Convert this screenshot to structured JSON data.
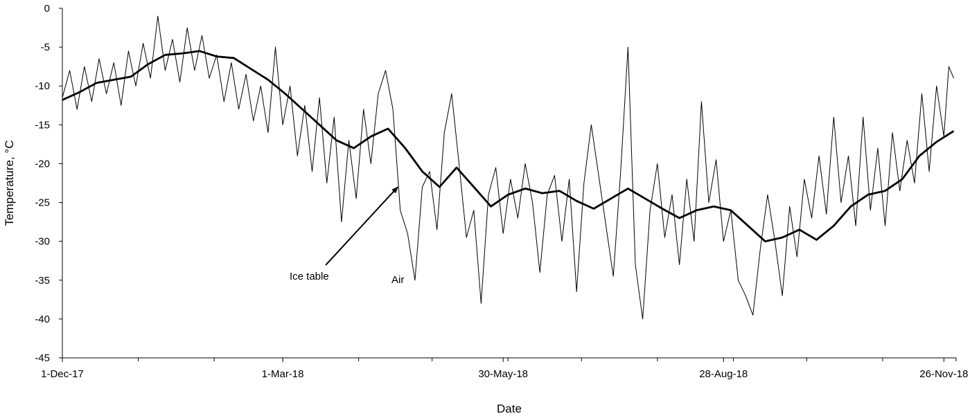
{
  "chart_data": {
    "type": "line",
    "title": "",
    "xlabel": "Date",
    "ylabel": "Temperature, °C",
    "x_domain": [
      "2017-12-01",
      "2018-12-01"
    ],
    "ylim": [
      -45,
      0
    ],
    "y_ticks": [
      0,
      -5,
      -10,
      -15,
      -20,
      -25,
      -30,
      -35,
      -40,
      -45
    ],
    "x_tick_labels": [
      {
        "date": "2017-12-01",
        "label": "1-Dec-17"
      },
      {
        "date": "2018-03-01",
        "label": "1-Mar-18"
      },
      {
        "date": "2018-05-30",
        "label": "30-May-18"
      },
      {
        "date": "2018-08-28",
        "label": "28-Aug-18"
      },
      {
        "date": "2018-11-26",
        "label": "26-Nov-18"
      }
    ],
    "grid": false,
    "legend": "none",
    "annotations": [
      {
        "text": "Ice table",
        "series": "Ice table",
        "arrow_to": {
          "date": "2018-04-17",
          "y": -23
        }
      },
      {
        "text": "Air",
        "series": "Air"
      }
    ],
    "series": [
      {
        "name": "Ice table",
        "style": "thick",
        "points": [
          [
            "2017-12-01",
            -11.8
          ],
          [
            "2017-12-08",
            -10.8
          ],
          [
            "2017-12-15",
            -9.6
          ],
          [
            "2017-12-22",
            -9.2
          ],
          [
            "2017-12-29",
            -8.8
          ],
          [
            "2018-01-05",
            -7.2
          ],
          [
            "2018-01-12",
            -6.0
          ],
          [
            "2018-01-19",
            -5.8
          ],
          [
            "2018-01-26",
            -5.5
          ],
          [
            "2018-02-02",
            -6.2
          ],
          [
            "2018-02-09",
            -6.4
          ],
          [
            "2018-02-16",
            -7.8
          ],
          [
            "2018-02-23",
            -9.2
          ],
          [
            "2018-03-02",
            -11.0
          ],
          [
            "2018-03-09",
            -13.0
          ],
          [
            "2018-03-16",
            -15.0
          ],
          [
            "2018-03-23",
            -17.0
          ],
          [
            "2018-03-30",
            -18.0
          ],
          [
            "2018-04-06",
            -16.5
          ],
          [
            "2018-04-13",
            -15.5
          ],
          [
            "2018-04-20",
            -18.0
          ],
          [
            "2018-04-27",
            -21.0
          ],
          [
            "2018-05-04",
            -23.0
          ],
          [
            "2018-05-11",
            -20.5
          ],
          [
            "2018-05-18",
            -23.0
          ],
          [
            "2018-05-25",
            -25.5
          ],
          [
            "2018-06-01",
            -24.0
          ],
          [
            "2018-06-08",
            -23.2
          ],
          [
            "2018-06-15",
            -23.8
          ],
          [
            "2018-06-22",
            -23.5
          ],
          [
            "2018-06-29",
            -24.8
          ],
          [
            "2018-07-06",
            -25.8
          ],
          [
            "2018-07-13",
            -24.5
          ],
          [
            "2018-07-20",
            -23.2
          ],
          [
            "2018-07-27",
            -24.5
          ],
          [
            "2018-08-03",
            -25.8
          ],
          [
            "2018-08-10",
            -27.0
          ],
          [
            "2018-08-17",
            -26.0
          ],
          [
            "2018-08-24",
            -25.5
          ],
          [
            "2018-08-31",
            -26.0
          ],
          [
            "2018-09-07",
            -28.0
          ],
          [
            "2018-09-14",
            -30.0
          ],
          [
            "2018-09-21",
            -29.5
          ],
          [
            "2018-09-28",
            -28.5
          ],
          [
            "2018-10-05",
            -29.8
          ],
          [
            "2018-10-12",
            -28.0
          ],
          [
            "2018-10-19",
            -25.5
          ],
          [
            "2018-10-26",
            -24.0
          ],
          [
            "2018-11-02",
            -23.5
          ],
          [
            "2018-11-09",
            -22.0
          ],
          [
            "2018-11-16",
            -19.0
          ],
          [
            "2018-11-23",
            -17.2
          ],
          [
            "2018-11-30",
            -15.8
          ]
        ]
      },
      {
        "name": "Air",
        "style": "thin",
        "points": [
          [
            "2017-12-01",
            -11.5
          ],
          [
            "2017-12-04",
            -8.0
          ],
          [
            "2017-12-07",
            -13.0
          ],
          [
            "2017-12-10",
            -7.5
          ],
          [
            "2017-12-13",
            -12.0
          ],
          [
            "2017-12-16",
            -6.5
          ],
          [
            "2017-12-19",
            -11.0
          ],
          [
            "2017-12-22",
            -7.0
          ],
          [
            "2017-12-25",
            -12.5
          ],
          [
            "2017-12-28",
            -5.5
          ],
          [
            "2017-12-31",
            -10.0
          ],
          [
            "2018-01-03",
            -4.5
          ],
          [
            "2018-01-06",
            -9.0
          ],
          [
            "2018-01-09",
            -1.0
          ],
          [
            "2018-01-12",
            -8.0
          ],
          [
            "2018-01-15",
            -4.0
          ],
          [
            "2018-01-18",
            -9.5
          ],
          [
            "2018-01-21",
            -2.5
          ],
          [
            "2018-01-24",
            -8.0
          ],
          [
            "2018-01-27",
            -3.5
          ],
          [
            "2018-01-30",
            -9.0
          ],
          [
            "2018-02-02",
            -6.0
          ],
          [
            "2018-02-05",
            -12.0
          ],
          [
            "2018-02-08",
            -7.0
          ],
          [
            "2018-02-11",
            -13.0
          ],
          [
            "2018-02-14",
            -8.5
          ],
          [
            "2018-02-17",
            -14.5
          ],
          [
            "2018-02-20",
            -10.0
          ],
          [
            "2018-02-23",
            -16.0
          ],
          [
            "2018-02-26",
            -5.0
          ],
          [
            "2018-03-01",
            -15.0
          ],
          [
            "2018-03-04",
            -10.0
          ],
          [
            "2018-03-07",
            -19.0
          ],
          [
            "2018-03-10",
            -12.5
          ],
          [
            "2018-03-13",
            -21.0
          ],
          [
            "2018-03-16",
            -11.5
          ],
          [
            "2018-03-19",
            -22.5
          ],
          [
            "2018-03-22",
            -14.0
          ],
          [
            "2018-03-25",
            -27.5
          ],
          [
            "2018-03-28",
            -17.0
          ],
          [
            "2018-03-31",
            -24.5
          ],
          [
            "2018-04-03",
            -13.0
          ],
          [
            "2018-04-06",
            -20.0
          ],
          [
            "2018-04-09",
            -11.0
          ],
          [
            "2018-04-12",
            -8.0
          ],
          [
            "2018-04-15",
            -13.0
          ],
          [
            "2018-04-18",
            -26.0
          ],
          [
            "2018-04-21",
            -29.0
          ],
          [
            "2018-04-24",
            -35.0
          ],
          [
            "2018-04-27",
            -23.0
          ],
          [
            "2018-04-30",
            -21.0
          ],
          [
            "2018-05-03",
            -28.5
          ],
          [
            "2018-05-06",
            -16.0
          ],
          [
            "2018-05-09",
            -11.0
          ],
          [
            "2018-05-12",
            -20.0
          ],
          [
            "2018-05-15",
            -29.5
          ],
          [
            "2018-05-18",
            -26.0
          ],
          [
            "2018-05-21",
            -38.0
          ],
          [
            "2018-05-24",
            -24.0
          ],
          [
            "2018-05-27",
            -20.5
          ],
          [
            "2018-05-30",
            -29.0
          ],
          [
            "2018-06-02",
            -22.0
          ],
          [
            "2018-06-05",
            -27.0
          ],
          [
            "2018-06-08",
            -20.0
          ],
          [
            "2018-06-11",
            -25.0
          ],
          [
            "2018-06-14",
            -34.0
          ],
          [
            "2018-06-17",
            -24.0
          ],
          [
            "2018-06-20",
            -21.5
          ],
          [
            "2018-06-23",
            -30.0
          ],
          [
            "2018-06-26",
            -22.0
          ],
          [
            "2018-06-29",
            -36.5
          ],
          [
            "2018-07-02",
            -22.5
          ],
          [
            "2018-07-05",
            -15.0
          ],
          [
            "2018-07-08",
            -21.5
          ],
          [
            "2018-07-11",
            -28.0
          ],
          [
            "2018-07-14",
            -34.5
          ],
          [
            "2018-07-17",
            -21.0
          ],
          [
            "2018-07-20",
            -5.0
          ],
          [
            "2018-07-23",
            -33.0
          ],
          [
            "2018-07-26",
            -40.0
          ],
          [
            "2018-07-29",
            -26.0
          ],
          [
            "2018-08-01",
            -20.0
          ],
          [
            "2018-08-04",
            -29.5
          ],
          [
            "2018-08-07",
            -24.0
          ],
          [
            "2018-08-10",
            -33.0
          ],
          [
            "2018-08-13",
            -22.0
          ],
          [
            "2018-08-16",
            -30.0
          ],
          [
            "2018-08-19",
            -12.0
          ],
          [
            "2018-08-22",
            -25.0
          ],
          [
            "2018-08-25",
            -19.5
          ],
          [
            "2018-08-28",
            -30.0
          ],
          [
            "2018-08-31",
            -26.0
          ],
          [
            "2018-09-03",
            -35.0
          ],
          [
            "2018-09-06",
            -37.0
          ],
          [
            "2018-09-09",
            -39.5
          ],
          [
            "2018-09-12",
            -31.0
          ],
          [
            "2018-09-15",
            -24.0
          ],
          [
            "2018-09-18",
            -30.0
          ],
          [
            "2018-09-21",
            -37.0
          ],
          [
            "2018-09-24",
            -25.5
          ],
          [
            "2018-09-27",
            -32.0
          ],
          [
            "2018-09-30",
            -22.0
          ],
          [
            "2018-10-03",
            -27.0
          ],
          [
            "2018-10-06",
            -19.0
          ],
          [
            "2018-10-09",
            -26.5
          ],
          [
            "2018-10-12",
            -14.0
          ],
          [
            "2018-10-15",
            -25.0
          ],
          [
            "2018-10-18",
            -19.0
          ],
          [
            "2018-10-21",
            -28.0
          ],
          [
            "2018-10-24",
            -14.0
          ],
          [
            "2018-10-27",
            -26.0
          ],
          [
            "2018-10-30",
            -18.0
          ],
          [
            "2018-11-02",
            -28.0
          ],
          [
            "2018-11-05",
            -16.0
          ],
          [
            "2018-11-08",
            -23.5
          ],
          [
            "2018-11-11",
            -17.0
          ],
          [
            "2018-11-14",
            -22.5
          ],
          [
            "2018-11-17",
            -11.0
          ],
          [
            "2018-11-20",
            -21.0
          ],
          [
            "2018-11-23",
            -10.0
          ],
          [
            "2018-11-26",
            -16.5
          ],
          [
            "2018-11-28",
            -7.5
          ],
          [
            "2018-11-30",
            -9.0
          ]
        ]
      }
    ]
  }
}
